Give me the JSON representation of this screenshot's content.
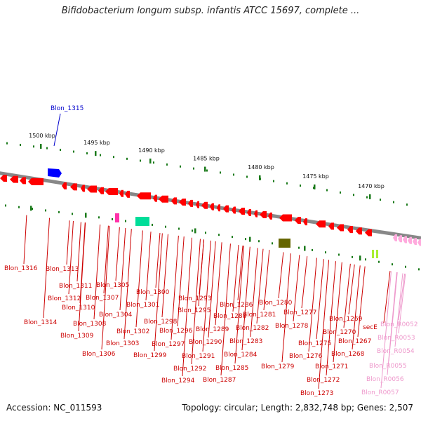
{
  "title": "Bifidobacterium longum subsp. infantis ATCC 15697, complete ...",
  "footer": {
    "accession": "Accession: NC_011593",
    "summary": "Topology: circular; Length: 2,832,748 bp; Genes: 2,507"
  },
  "colors": {
    "backbone": "#888888",
    "gene_red": "#ff0000",
    "gene_blue": "#0000ff",
    "gene_magenta": "#ff33aa",
    "gene_teal": "#00dd99",
    "gene_olive": "#666600",
    "gene_lime": "#aaee33",
    "gene_pink": "#ffaadd",
    "tick_green": "#1a7a1a",
    "label_red": "#cc0000",
    "label_blue": "#0000cc",
    "label_pink": "#ee99cc"
  },
  "scale_ticks": [
    "1500 kbp",
    "1495 kbp",
    "1490 kbp",
    "1485 kbp",
    "1480 kbp",
    "1475 kbp",
    "1470 kbp"
  ],
  "gene_labels": [
    {
      "text": "Blon_1315",
      "color": "blue"
    },
    {
      "text": "Blon_1316",
      "color": "red"
    },
    {
      "text": "Blon_1313",
      "color": "red"
    },
    {
      "text": "Blon_1311",
      "color": "red"
    },
    {
      "text": "Blon_1305",
      "color": "red"
    },
    {
      "text": "Blon_1312",
      "color": "red"
    },
    {
      "text": "Blon_1307",
      "color": "red"
    },
    {
      "text": "Blon_1300",
      "color": "red"
    },
    {
      "text": "Blon_1293",
      "color": "red"
    },
    {
      "text": "Blon_1310",
      "color": "red"
    },
    {
      "text": "Blon_1301",
      "color": "red"
    },
    {
      "text": "Blon_1295",
      "color": "red"
    },
    {
      "text": "Blon_1286",
      "color": "red"
    },
    {
      "text": "Blon_1280",
      "color": "red"
    },
    {
      "text": "Blon_1304",
      "color": "red"
    },
    {
      "text": "Blon_1298",
      "color": "red"
    },
    {
      "text": "Blon_1288",
      "color": "red"
    },
    {
      "text": "Blon_1281",
      "color": "red"
    },
    {
      "text": "Blon_1277",
      "color": "red"
    },
    {
      "text": "Blon_1314",
      "color": "red"
    },
    {
      "text": "Blon_1308",
      "color": "red"
    },
    {
      "text": "Blon_1296",
      "color": "red"
    },
    {
      "text": "Blon_1289",
      "color": "red"
    },
    {
      "text": "Blon_1282",
      "color": "red"
    },
    {
      "text": "Blon_1278",
      "color": "red"
    },
    {
      "text": "Blon_1269",
      "color": "red"
    },
    {
      "text": "secE",
      "color": "red"
    },
    {
      "text": "Blon_R0052",
      "color": "pink"
    },
    {
      "text": "Blon_1302",
      "color": "red"
    },
    {
      "text": "Blon_1270",
      "color": "red"
    },
    {
      "text": "Blon_1309",
      "color": "red"
    },
    {
      "text": "Blon_1290",
      "color": "red"
    },
    {
      "text": "Blon_1283",
      "color": "red"
    },
    {
      "text": "Blon_1275",
      "color": "red"
    },
    {
      "text": "Blon_1267",
      "color": "red"
    },
    {
      "text": "Blon_R0053",
      "color": "pink"
    },
    {
      "text": "Blon_1303",
      "color": "red"
    },
    {
      "text": "Blon_1297",
      "color": "red"
    },
    {
      "text": "Blon_1291",
      "color": "red"
    },
    {
      "text": "Blon_1284",
      "color": "red"
    },
    {
      "text": "Blon_1276",
      "color": "red"
    },
    {
      "text": "Blon_1268",
      "color": "red"
    },
    {
      "text": "Blon_R0054",
      "color": "pink"
    },
    {
      "text": "Blon_1306",
      "color": "red"
    },
    {
      "text": "Blon_1299",
      "color": "red"
    },
    {
      "text": "Blon_1292",
      "color": "red"
    },
    {
      "text": "Blon_1285",
      "color": "red"
    },
    {
      "text": "Blon_1279",
      "color": "red"
    },
    {
      "text": "Blon_1271",
      "color": "red"
    },
    {
      "text": "Blon_R0055",
      "color": "pink"
    },
    {
      "text": "Blon_1294",
      "color": "red"
    },
    {
      "text": "Blon_1287",
      "color": "red"
    },
    {
      "text": "Blon_1272",
      "color": "red"
    },
    {
      "text": "Blon_R0056",
      "color": "pink"
    },
    {
      "text": "Blon_1273",
      "color": "red"
    },
    {
      "text": "Blon_R0057",
      "color": "pink"
    }
  ]
}
